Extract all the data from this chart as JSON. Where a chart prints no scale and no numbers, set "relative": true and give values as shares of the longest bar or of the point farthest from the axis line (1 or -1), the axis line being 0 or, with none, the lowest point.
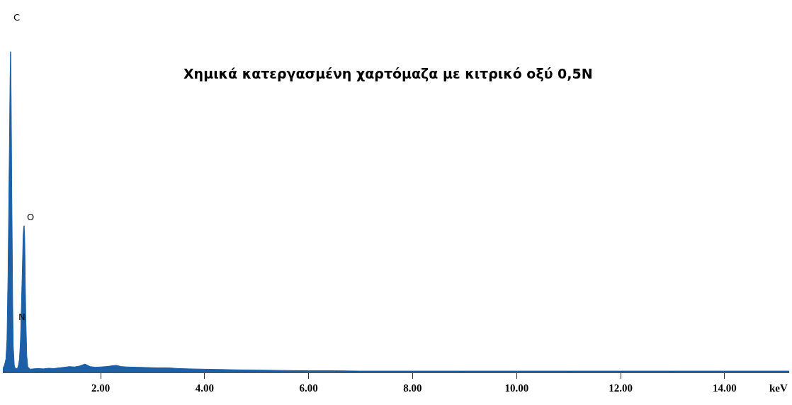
{
  "chart_data": {
    "type": "area",
    "title": "Χημικά κατεργασμένη χαρτόμαζα με κιτρικό οξύ 0,5N",
    "xlabel": "keV",
    "relative": true,
    "x": [
      0.12,
      0.15,
      0.18,
      0.2,
      0.22,
      0.24,
      0.25,
      0.26,
      0.27,
      0.28,
      0.29,
      0.3,
      0.31,
      0.32,
      0.34,
      0.36,
      0.38,
      0.4,
      0.42,
      0.44,
      0.46,
      0.48,
      0.5,
      0.51,
      0.52,
      0.53,
      0.54,
      0.55,
      0.56,
      0.58,
      0.6,
      0.65,
      0.7,
      0.8,
      0.9,
      1.0,
      1.1,
      1.2,
      1.3,
      1.4,
      1.5,
      1.6,
      1.7,
      1.75,
      1.8,
      1.9,
      2.0,
      2.1,
      2.2,
      2.3,
      2.4,
      2.5,
      2.7,
      2.9,
      3.1,
      3.3,
      3.5,
      3.7,
      4.0,
      4.3,
      4.6,
      5.0,
      5.5,
      6.0,
      6.5,
      7.0,
      8.0,
      9.0,
      10.0,
      11.0,
      12.0,
      13.0,
      14.0,
      15.24
    ],
    "series": [
      {
        "color": "#1c5fa6",
        "values": [
          0.01,
          0.02,
          0.04,
          0.1,
          0.3,
          0.6,
          0.75,
          0.92,
          1.0,
          0.85,
          0.6,
          0.4,
          0.2,
          0.08,
          0.02,
          0.01,
          0.01,
          0.01,
          0.02,
          0.04,
          0.1,
          0.22,
          0.35,
          0.42,
          0.45,
          0.456,
          0.42,
          0.3,
          0.18,
          0.05,
          0.015,
          0.008,
          0.009,
          0.01,
          0.009,
          0.011,
          0.01,
          0.012,
          0.014,
          0.016,
          0.015,
          0.018,
          0.024,
          0.02,
          0.016,
          0.014,
          0.015,
          0.016,
          0.018,
          0.02,
          0.016,
          0.015,
          0.014,
          0.013,
          0.012,
          0.012,
          0.01,
          0.009,
          0.008,
          0.007,
          0.006,
          0.005,
          0.004,
          0.003,
          0.003,
          0.002,
          0.002,
          0.002,
          0.002,
          0.002,
          0.002,
          0.002,
          0.002,
          0.002
        ]
      }
    ],
    "xlim": [
      0.12,
      15.24
    ],
    "xticks": [
      {
        "value": 2,
        "label": "2.00"
      },
      {
        "value": 4,
        "label": "4.00"
      },
      {
        "value": 6,
        "label": "6.00"
      },
      {
        "value": 8,
        "label": "8.00"
      },
      {
        "value": 10,
        "label": "10.00"
      },
      {
        "value": 12,
        "label": "12.00"
      },
      {
        "value": 14,
        "label": "14.00"
      }
    ],
    "annotations": [
      "C",
      "O",
      "N"
    ]
  }
}
